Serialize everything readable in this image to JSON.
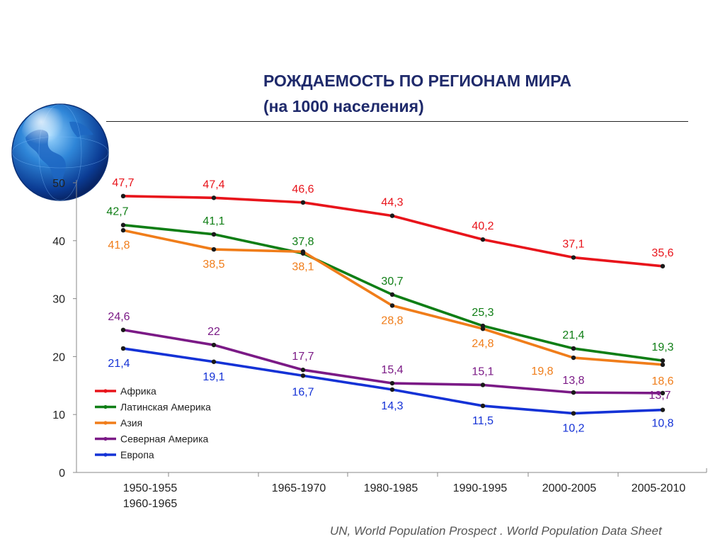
{
  "header": {
    "title_line1": "РОЖДАЕМОСТЬ ПО РЕГИОНАМ МИРА",
    "title_line2": "(на 1000 населения)"
  },
  "decoration": {
    "globe_icon": "globe-icon"
  },
  "footer": {
    "source": "UN, World Population Prospect . World Population Data Sheet"
  },
  "chart_data": {
    "type": "line",
    "title": "РОЖДАЕМОСТЬ ПО РЕГИОНАМ МИРА (на 1000 населения)",
    "xlabel": "",
    "ylabel": "",
    "ylim": [
      0,
      50
    ],
    "yticks": [
      0,
      10,
      20,
      30,
      40,
      50
    ],
    "grid": false,
    "legend": "bottom-left",
    "categories": [
      "1950-1955",
      "1960-1965",
      "1965-1970",
      "1980-1985",
      "1990-1995",
      "2000-2005",
      "2005-2010"
    ],
    "category_label_lines": [
      [
        "1950-1955",
        "1960-1965"
      ],
      [],
      [
        "1965-1970"
      ],
      [
        "1980-1985"
      ],
      [
        "1990-1995"
      ],
      [
        "2000-2005"
      ],
      [
        "2005-2010"
      ]
    ],
    "series": [
      {
        "name": "Африка",
        "color": "#e8141b",
        "values": [
          47.7,
          47.4,
          46.6,
          44.3,
          40.2,
          37.1,
          35.6
        ],
        "labels": [
          "47,7",
          "47,4",
          "46,6",
          "44,3",
          "40,2",
          "37,1",
          "35,6"
        ]
      },
      {
        "name": "Латинская Америка",
        "color": "#0f7e15",
        "values": [
          42.7,
          41.1,
          37.8,
          30.7,
          25.3,
          21.4,
          19.3
        ],
        "labels": [
          "42,7",
          "41,1",
          "37,8",
          "30,7",
          "25,3",
          "21,4",
          "19,3"
        ]
      },
      {
        "name": "Азия",
        "color": "#f07d1a",
        "values": [
          41.8,
          38.5,
          38.1,
          28.8,
          24.8,
          19.8,
          18.6
        ],
        "labels": [
          "41,8",
          "38,5",
          "38,1",
          "28,8",
          "24,8",
          "19,8",
          "18,6"
        ]
      },
      {
        "name": "Северная Америка",
        "color": "#7b1a86",
        "values": [
          24.6,
          22,
          17.7,
          15.4,
          15.1,
          13.8,
          13.7
        ],
        "labels": [
          "24,6",
          "22",
          "17,7",
          "15,4",
          "15,1",
          "13,8",
          "13,7"
        ]
      },
      {
        "name": "Европа",
        "color": "#1432d6",
        "values": [
          21.4,
          19.1,
          16.7,
          14.3,
          11.5,
          10.2,
          10.8
        ],
        "labels": [
          "21,4",
          "19,1",
          "16,7",
          "14,3",
          "11,5",
          "10,2",
          "10,8"
        ]
      }
    ]
  }
}
